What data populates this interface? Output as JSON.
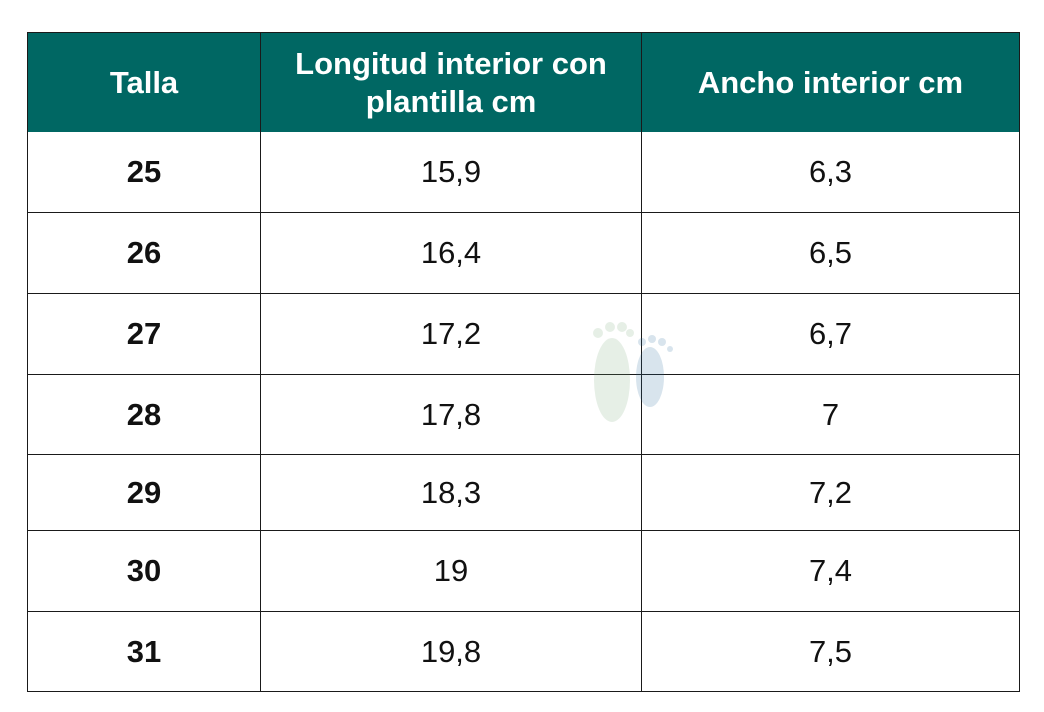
{
  "table": {
    "header": [
      "Talla",
      "Longitud interior con plantilla cm",
      "Ancho interior cm"
    ],
    "rows": [
      [
        "25",
        "15,9",
        "6,3"
      ],
      [
        "26",
        "16,4",
        "6,5"
      ],
      [
        "27",
        "17,2",
        "6,7"
      ],
      [
        "28",
        "17,8",
        "7"
      ],
      [
        "29",
        "18,3",
        "7,2"
      ],
      [
        "30",
        "19",
        "7,4"
      ],
      [
        "31",
        "19,8",
        "7,5"
      ]
    ]
  }
}
